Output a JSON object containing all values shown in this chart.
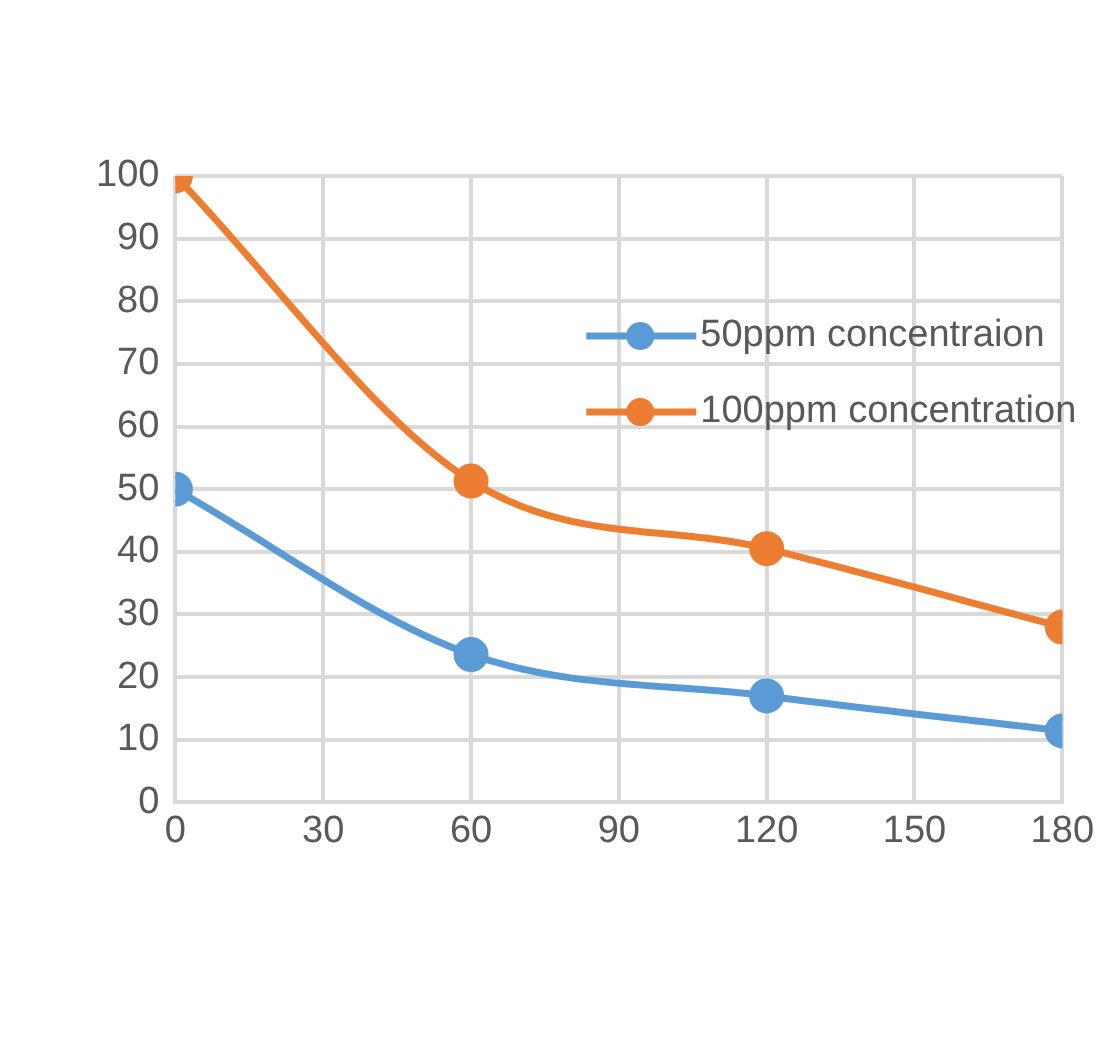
{
  "chart_data": {
    "type": "line",
    "x": [
      0,
      60,
      120,
      180
    ],
    "series": [
      {
        "name": "50ppm concentraion",
        "color": "#5b9bd5",
        "values": [
          50,
          23.6,
          17,
          11.4
        ]
      },
      {
        "name": "100ppm concentration",
        "color": "#ed7d31",
        "values": [
          100,
          51.3,
          40.5,
          28
        ]
      }
    ],
    "xlim": [
      0,
      180
    ],
    "xticks": [
      0,
      30,
      60,
      90,
      120,
      150,
      180
    ],
    "ylim": [
      0,
      100
    ],
    "yticks": [
      0,
      10,
      20,
      30,
      40,
      50,
      60,
      70,
      80,
      90,
      100
    ],
    "grid": true,
    "legend": "top right",
    "marker": "circle",
    "line_style": "solid"
  }
}
